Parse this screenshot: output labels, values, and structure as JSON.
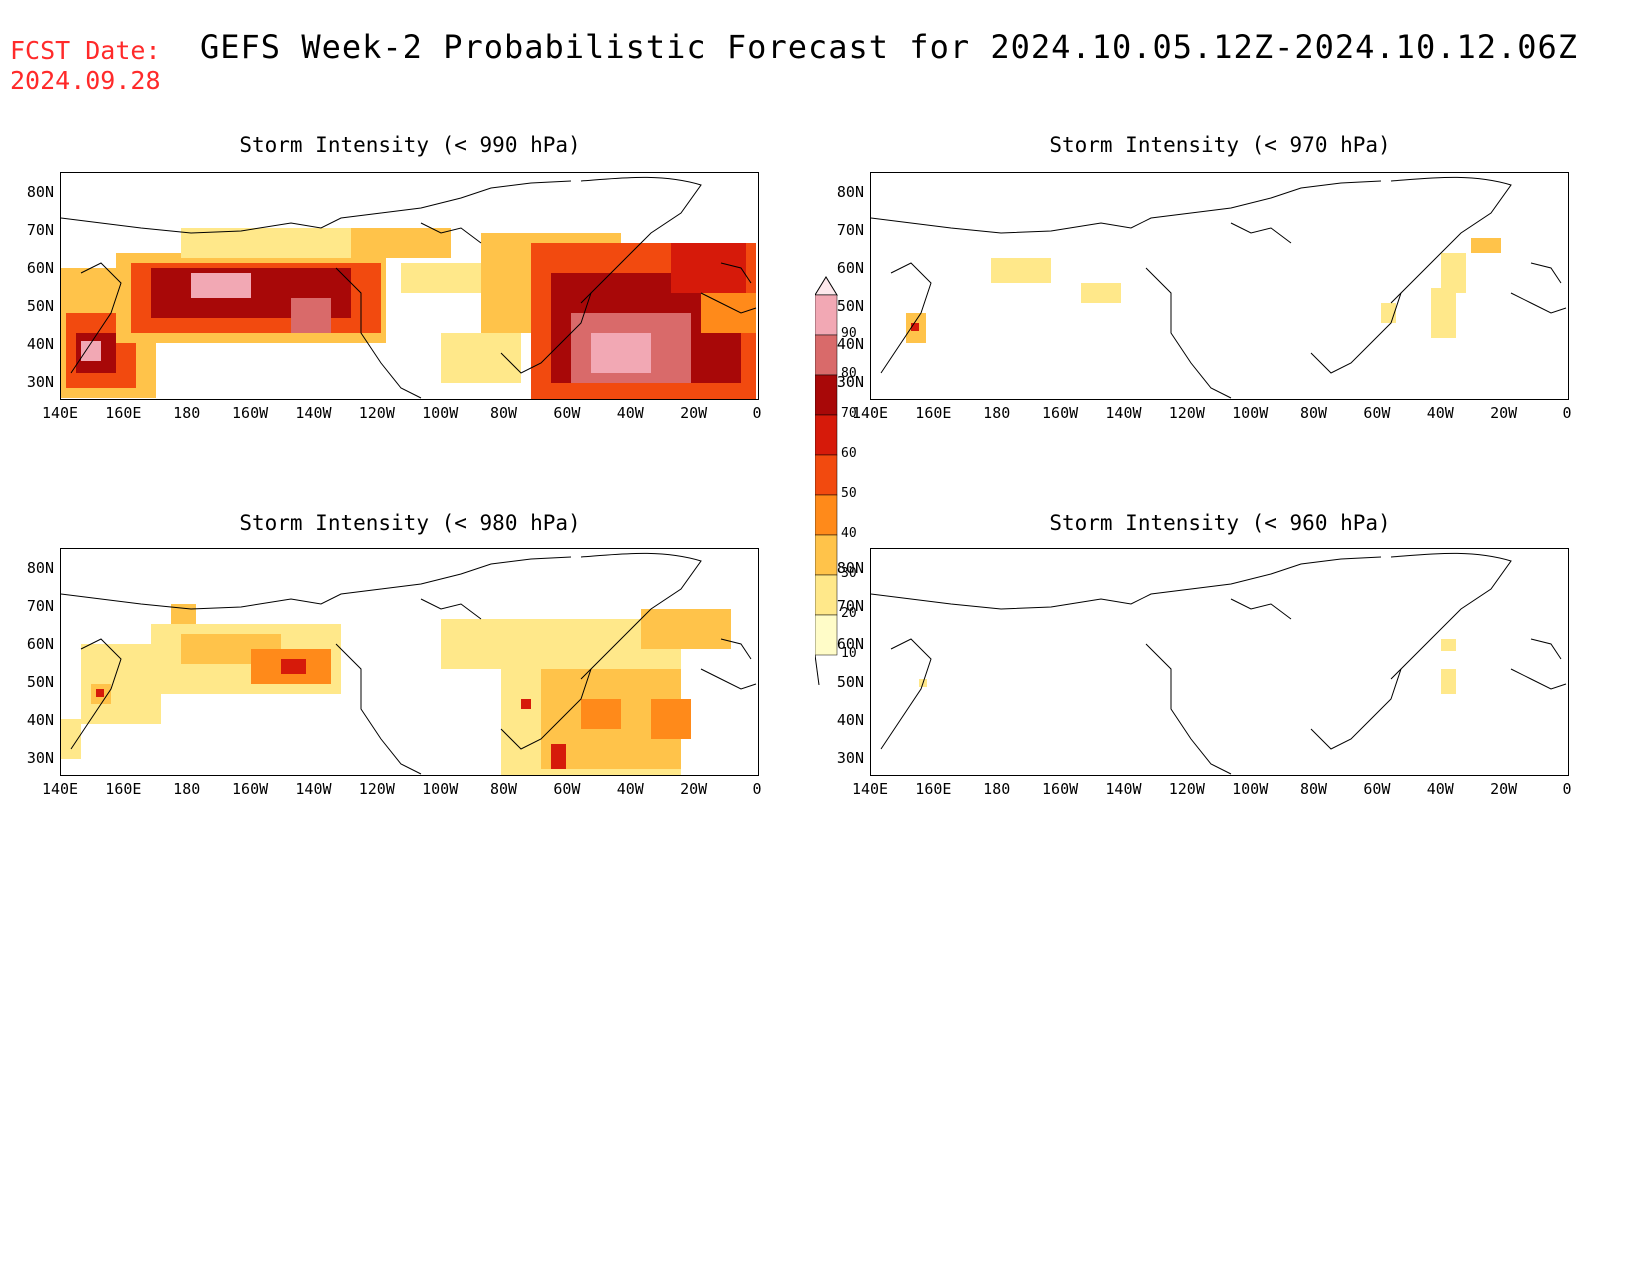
{
  "header": {
    "fcst_label": "FCST Date:",
    "fcst_date": "2024.09.28",
    "title": "GEFS Week-2 Probabilistic Forecast for 2024.10.05.12Z-2024.10.12.06Z"
  },
  "panels": [
    {
      "id": "p990",
      "title": "Storm Intensity (< 990 hPa)"
    },
    {
      "id": "p970",
      "title": "Storm Intensity (< 970 hPa)"
    },
    {
      "id": "p980",
      "title": "Storm Intensity (< 980 hPa)"
    },
    {
      "id": "p960",
      "title": "Storm Intensity (< 960 hPa)"
    }
  ],
  "lat_labels": [
    "80N",
    "70N",
    "60N",
    "50N",
    "40N",
    "30N"
  ],
  "lon_labels": [
    "140E",
    "160E",
    "180",
    "160W",
    "140W",
    "120W",
    "100W",
    "80W",
    "60W",
    "40W",
    "20W",
    "0"
  ],
  "colorbar": {
    "levels": [
      "10",
      "20",
      "30",
      "40",
      "50",
      "60",
      "70",
      "80",
      "90"
    ],
    "colors": [
      "#fffcc8",
      "#ffe88a",
      "#ffc34a",
      "#ff8a1a",
      "#f24a0f",
      "#d61a0a",
      "#a80808",
      "#d96a6a",
      "#f2a8b4"
    ]
  },
  "map_colors": {
    "c1": "#fffcc8",
    "c2": "#ffe88a",
    "c3": "#ffc34a",
    "c4": "#ff8a1a",
    "c5": "#f24a0f",
    "c6": "#d61a0a",
    "c7": "#a80808",
    "c8": "#d96a6a",
    "c9": "#f2a8b4"
  }
}
